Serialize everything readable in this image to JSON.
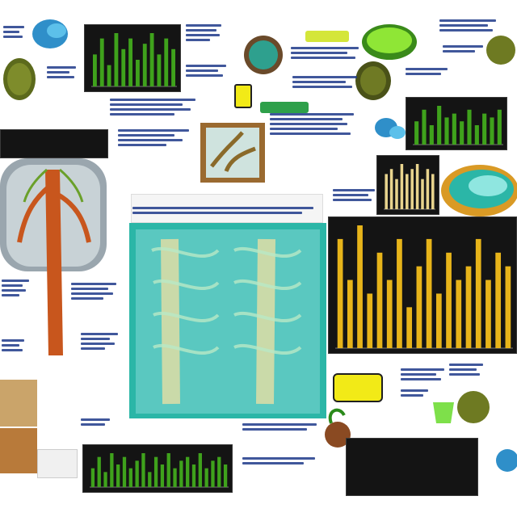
{
  "colors": {
    "navy": "#1f3a8a",
    "bar_green": "#3fa21c",
    "bar_yellow": "#e7b41a",
    "bar_cream": "#e8d48e",
    "panel": "#141414",
    "teal": "#2bb6a7",
    "organ_orange": "#c8561d",
    "accent_yellow": "#f2ea17"
  },
  "chart_data": [
    {
      "type": "bar",
      "title": "",
      "xlabel": "",
      "ylabel": "",
      "values": [
        6,
        9,
        4,
        10,
        7,
        9,
        5,
        8,
        10,
        6,
        9,
        7
      ],
      "bar_color": "#3fa21c"
    },
    {
      "type": "bar",
      "title": "",
      "xlabel": "",
      "ylabel": "",
      "values": [
        6,
        9,
        5,
        10,
        7,
        8,
        6,
        9,
        5,
        8,
        7,
        9
      ],
      "bar_color": "#3fa21c"
    },
    {
      "type": "bar",
      "title": "",
      "xlabel": "",
      "ylabel": "",
      "values": [
        7,
        8,
        6,
        9,
        7,
        8,
        9,
        6,
        8,
        7
      ],
      "bar_color": "#e8d48e"
    },
    {
      "type": "bar",
      "title": "",
      "xlabel": "",
      "ylabel": "",
      "values": [
        8,
        5,
        9,
        4,
        7,
        5,
        8,
        3,
        6,
        8,
        4,
        7,
        5,
        6,
        8,
        5,
        7,
        6
      ],
      "bar_color": "#e7b41a"
    },
    {
      "type": "bar",
      "title": "",
      "xlabel": "",
      "ylabel": "",
      "values": [
        5,
        8,
        4,
        9,
        6,
        8,
        5,
        7,
        9,
        4,
        8,
        6,
        9,
        5,
        7,
        8,
        6,
        9,
        5,
        7,
        8,
        6
      ],
      "bar_color": "#3fa21c"
    }
  ],
  "icons": [
    "kidney-icon",
    "cell-icon",
    "organ-icon",
    "vessel-icon",
    "lung-icon",
    "plant-icon"
  ],
  "captions": {
    "top_center": "",
    "right_lower": "",
    "bottom_left": "",
    "bottom_right": "",
    "badge": ""
  }
}
